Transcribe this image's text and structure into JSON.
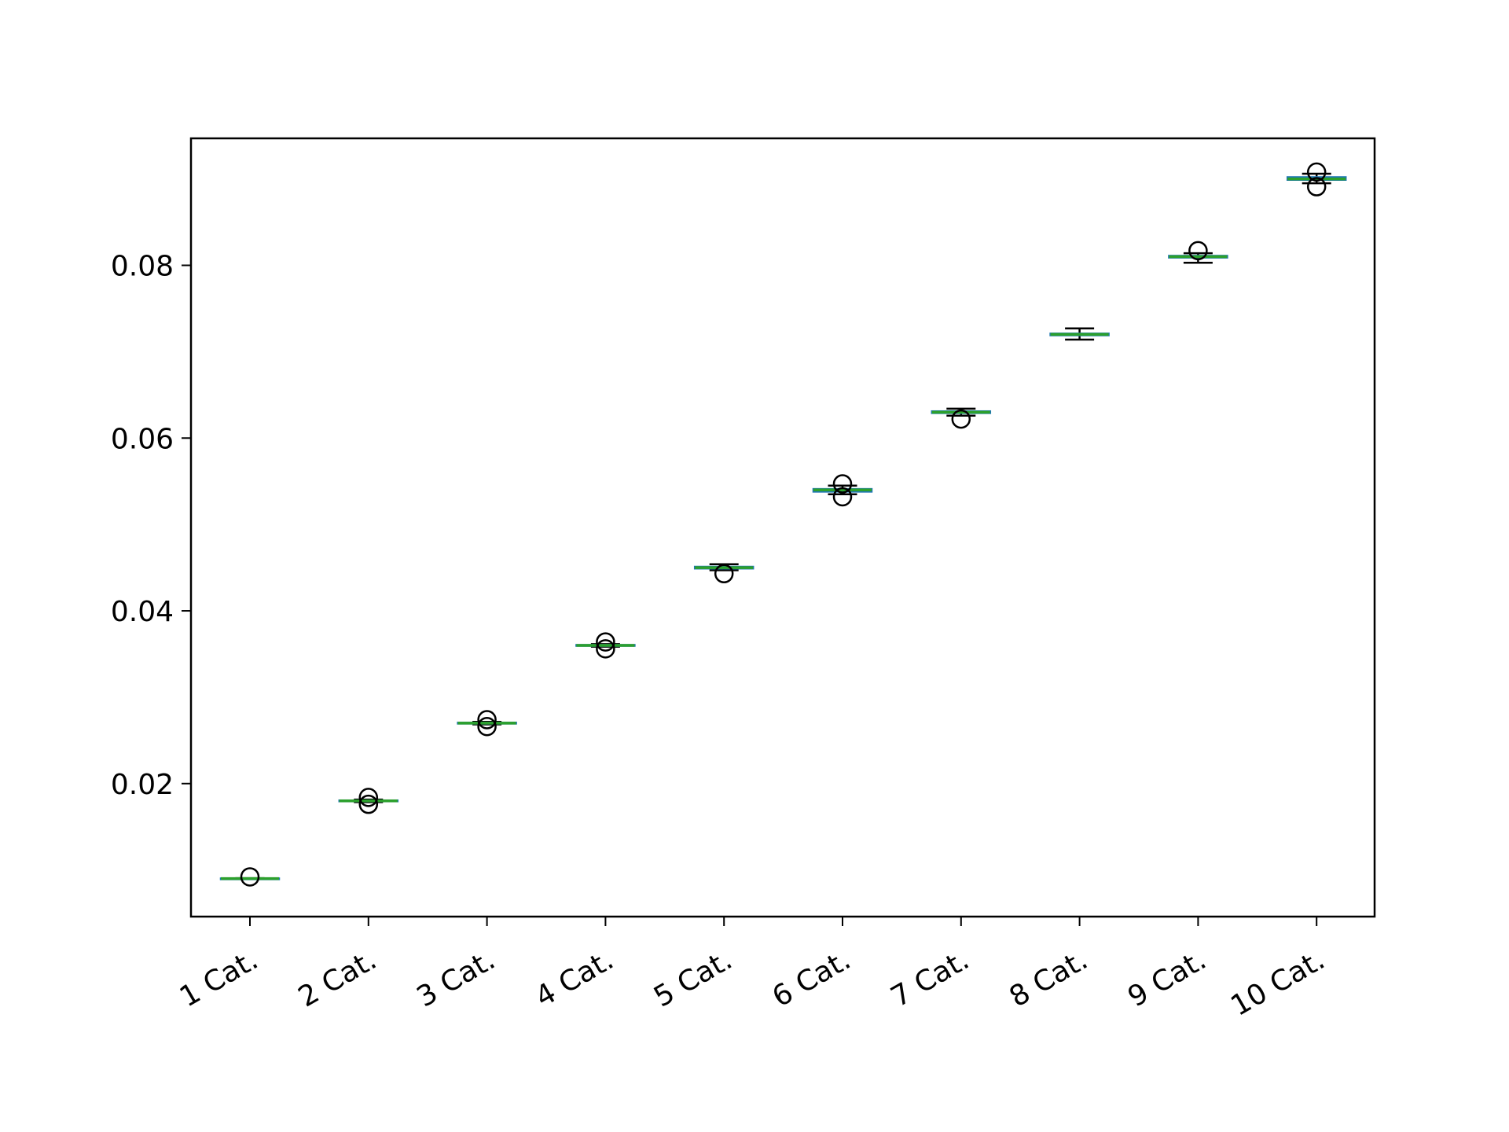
{
  "chart_data": {
    "type": "box",
    "title": "",
    "xlabel": "",
    "ylabel": "",
    "categories": [
      "1 Cat.",
      "2 Cat.",
      "3 Cat.",
      "4 Cat.",
      "5 Cat.",
      "6 Cat.",
      "7 Cat.",
      "8 Cat.",
      "9 Cat.",
      "10 Cat."
    ],
    "ylim": [
      0.0046,
      0.0947
    ],
    "yticks": [
      0.02,
      0.04,
      0.06,
      0.08
    ],
    "ytick_labels": [
      "0.02",
      "0.04",
      "0.06",
      "0.08"
    ],
    "grid": false,
    "boxes": [
      {
        "whislo": 0.00895,
        "q1": 0.00898,
        "med": 0.009,
        "q3": 0.00902,
        "whishi": 0.00905,
        "fliers": [
          0.0092
        ]
      },
      {
        "whislo": 0.01785,
        "q1": 0.01795,
        "med": 0.018,
        "q3": 0.01805,
        "whishi": 0.01815,
        "fliers": [
          0.0176,
          0.0184
        ]
      },
      {
        "whislo": 0.02685,
        "q1": 0.02695,
        "med": 0.027,
        "q3": 0.02705,
        "whishi": 0.02715,
        "fliers": [
          0.0266,
          0.0274
        ]
      },
      {
        "whislo": 0.03585,
        "q1": 0.03595,
        "med": 0.036,
        "q3": 0.03605,
        "whishi": 0.03615,
        "fliers": [
          0.0356,
          0.0364
        ]
      },
      {
        "whislo": 0.0447,
        "q1": 0.0449,
        "med": 0.045,
        "q3": 0.0451,
        "whishi": 0.0454,
        "fliers": [
          0.0443
        ]
      },
      {
        "whislo": 0.0535,
        "q1": 0.0538,
        "med": 0.054,
        "q3": 0.0541,
        "whishi": 0.0545,
        "fliers": [
          0.0532,
          0.0547
        ]
      },
      {
        "whislo": 0.0626,
        "q1": 0.0629,
        "med": 0.063,
        "q3": 0.0631,
        "whishi": 0.0634,
        "fliers": [
          0.0622
        ]
      },
      {
        "whislo": 0.0714,
        "q1": 0.0719,
        "med": 0.072,
        "q3": 0.0721,
        "whishi": 0.0727,
        "fliers": []
      },
      {
        "whislo": 0.0803,
        "q1": 0.0809,
        "med": 0.081,
        "q3": 0.0811,
        "whishi": 0.0814,
        "fliers": [
          0.0817
        ]
      },
      {
        "whislo": 0.0895,
        "q1": 0.0899,
        "med": 0.09,
        "q3": 0.0902,
        "whishi": 0.0906,
        "fliers": [
          0.0891,
          0.0908
        ]
      }
    ],
    "colors": {
      "box": "#1f77b4",
      "median": "#2ca02c",
      "whisker": "#000000",
      "flier": "#000000",
      "frame": "#000000"
    }
  }
}
